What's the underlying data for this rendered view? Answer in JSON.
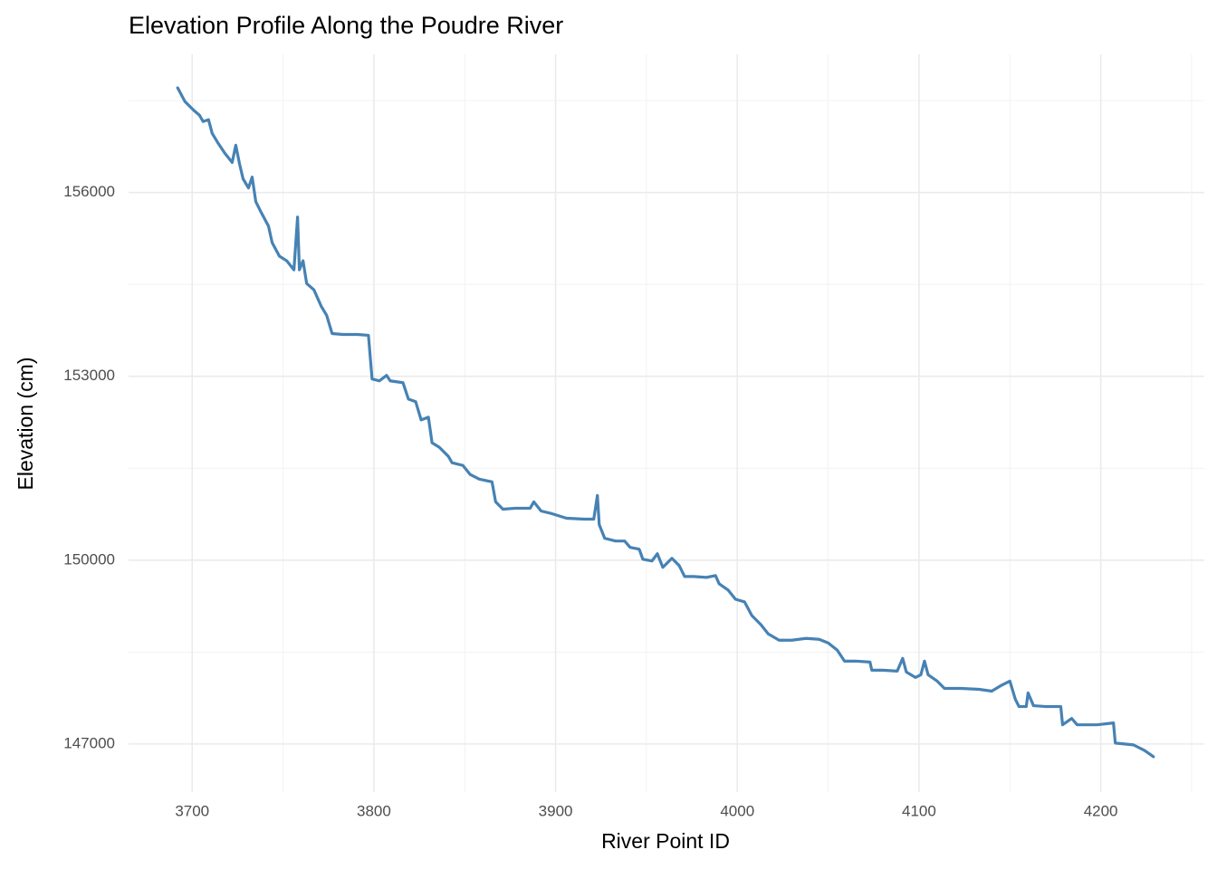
{
  "chart_data": {
    "type": "line",
    "title": "Elevation Profile Along the Poudre River",
    "x_label": "River Point ID",
    "y_label": "Elevation (cm)",
    "x": [
      3692,
      3696,
      3701,
      3704,
      3706,
      3709,
      3711,
      3714,
      3718,
      3722,
      3724,
      3726,
      3728,
      3731,
      3733,
      3735,
      3738,
      3742,
      3744,
      3748,
      3752,
      3756,
      3758,
      3759,
      3761,
      3763,
      3767,
      3771,
      3774,
      3777,
      3783,
      3791,
      3797,
      3799,
      3803,
      3807,
      3809,
      3816,
      3819,
      3823,
      3826,
      3830,
      3832,
      3836,
      3841,
      3843,
      3849,
      3853,
      3858,
      3865,
      3867,
      3871,
      3878,
      3886,
      3888,
      3892,
      3898,
      3906,
      3916,
      3921,
      3923,
      3924,
      3927,
      3933,
      3938,
      3941,
      3946,
      3948,
      3953,
      3956,
      3959,
      3964,
      3968,
      3971,
      3976,
      3983,
      3988,
      3990,
      3995,
      3999,
      4004,
      4008,
      4013,
      4017,
      4023,
      4030,
      4038,
      4045,
      4050,
      4055,
      4059,
      4065,
      4073,
      4074,
      4080,
      4088,
      4091,
      4093,
      4098,
      4101,
      4103,
      4105,
      4110,
      4114,
      4123,
      4133,
      4140,
      4145,
      4150,
      4153,
      4155,
      4159,
      4160,
      4163,
      4170,
      4178,
      4179,
      4184,
      4187,
      4198,
      4207,
      4208,
      4218,
      4224,
      4229
    ],
    "values": [
      157708,
      157485,
      157337,
      157262,
      157158,
      157188,
      156965,
      156817,
      156639,
      156490,
      156772,
      156475,
      156223,
      156074,
      156252,
      155852,
      155673,
      155451,
      155183,
      154961,
      154886,
      154738,
      155599,
      154738,
      154886,
      154515,
      154411,
      154144,
      153995,
      153698,
      153683,
      153683,
      153669,
      152956,
      152926,
      153015,
      152926,
      152896,
      152629,
      152585,
      152288,
      152333,
      151916,
      151842,
      151693,
      151590,
      151545,
      151397,
      151322,
      151278,
      150951,
      150832,
      150847,
      150847,
      150951,
      150802,
      150758,
      150684,
      150669,
      150669,
      151055,
      150580,
      150357,
      150312,
      150312,
      150208,
      150179,
      150015,
      149986,
      150104,
      149882,
      150030,
      149911,
      149733,
      149733,
      149718,
      149748,
      149614,
      149510,
      149362,
      149318,
      149095,
      148946,
      148797,
      148693,
      148693,
      148723,
      148708,
      148649,
      148530,
      148352,
      148352,
      148337,
      148204,
      148204,
      148189,
      148397,
      148174,
      148085,
      148129,
      148352,
      148129,
      148025,
      147907,
      147907,
      147892,
      147862,
      147951,
      148025,
      147729,
      147610,
      147610,
      147833,
      147625,
      147610,
      147610,
      147313,
      147417,
      147313,
      147313,
      147343,
      147015,
      146985,
      146896,
      146792
    ],
    "color": "#4682B4",
    "xlim": [
      3665,
      4257
    ],
    "ylim": [
      146215,
      158255
    ],
    "xticks": [
      3700,
      3800,
      3900,
      4000,
      4100,
      4200
    ],
    "yticks": [
      147000,
      150000,
      153000,
      156000
    ],
    "x_minor_ticks": [
      3750,
      3850,
      3950,
      4050,
      4150,
      4250
    ],
    "y_minor_ticks": [
      148500,
      151500,
      154500,
      157500
    ],
    "grid": true
  }
}
